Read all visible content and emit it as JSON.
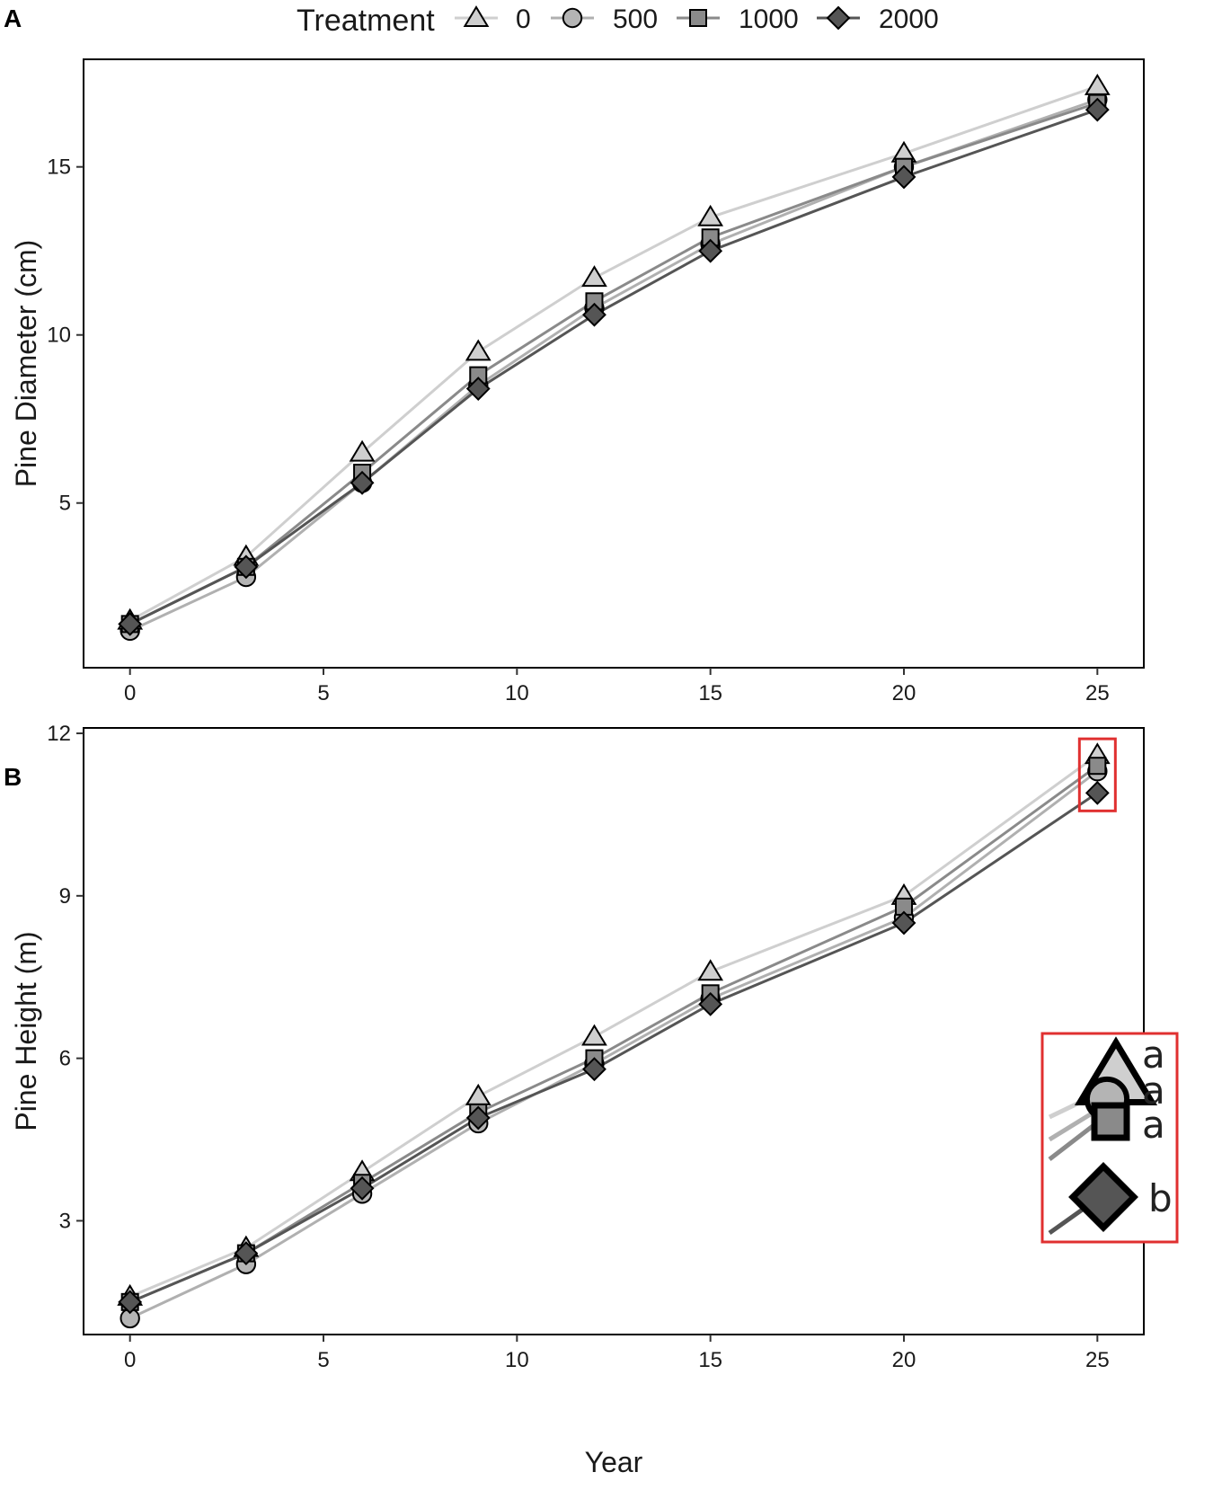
{
  "legend": {
    "title": "Treatment",
    "entries": [
      {
        "label": "0",
        "shape": "triangle",
        "fill": "#cfcfcf",
        "line": "#cfcfcf"
      },
      {
        "label": "500",
        "shape": "circle",
        "fill": "#b4b4b4",
        "line": "#b0b0b0"
      },
      {
        "label": "1000",
        "shape": "square",
        "fill": "#8a8a8a",
        "line": "#8a8a8a"
      },
      {
        "label": "2000",
        "shape": "diamond",
        "fill": "#555555",
        "line": "#555555"
      }
    ]
  },
  "chart_data": [
    {
      "panel": "A",
      "type": "line",
      "xlabel": "",
      "ylabel": "Pine Diameter (cm)",
      "xlim": [
        -1.2,
        26.2
      ],
      "ylim": [
        0.1,
        18.2
      ],
      "xticks": [
        0,
        5,
        10,
        15,
        20,
        25
      ],
      "yticks": [
        5,
        10,
        15
      ],
      "grid": false,
      "x": [
        0,
        3,
        6,
        9,
        12,
        15,
        20,
        25
      ],
      "series": [
        {
          "name": "0",
          "values": [
            1.5,
            3.4,
            6.5,
            9.5,
            11.7,
            13.5,
            15.4,
            17.4
          ]
        },
        {
          "name": "500",
          "values": [
            1.2,
            2.8,
            5.6,
            8.5,
            10.8,
            12.7,
            15.0,
            17.0
          ]
        },
        {
          "name": "1000",
          "values": [
            1.4,
            3.1,
            5.9,
            8.8,
            11.0,
            12.9,
            15.0,
            16.9
          ]
        },
        {
          "name": "2000",
          "values": [
            1.4,
            3.1,
            5.6,
            8.4,
            10.6,
            12.5,
            14.7,
            16.7
          ]
        }
      ]
    },
    {
      "panel": "B",
      "type": "line",
      "xlabel": "Year",
      "ylabel": "Pine Height (m)",
      "xlim": [
        -1.2,
        26.2
      ],
      "ylim": [
        0.9,
        12.1
      ],
      "xticks": [
        0,
        5,
        10,
        15,
        20,
        25
      ],
      "yticks": [
        3,
        6,
        9,
        12
      ],
      "grid": false,
      "x": [
        0,
        3,
        6,
        9,
        12,
        15,
        20,
        25
      ],
      "series": [
        {
          "name": "0",
          "values": [
            1.6,
            2.5,
            3.9,
            5.3,
            6.4,
            7.6,
            9.0,
            11.6
          ]
        },
        {
          "name": "500",
          "values": [
            1.2,
            2.2,
            3.5,
            4.8,
            5.9,
            7.1,
            8.6,
            11.3
          ]
        },
        {
          "name": "1000",
          "values": [
            1.5,
            2.4,
            3.7,
            5.0,
            6.0,
            7.2,
            8.8,
            11.4
          ]
        },
        {
          "name": "2000",
          "values": [
            1.5,
            2.4,
            3.6,
            4.9,
            5.8,
            7.0,
            8.5,
            10.9
          ]
        }
      ],
      "annotations": {
        "highlight_color": "#e03030",
        "significance_letters": [
          {
            "series": "0",
            "letter": "a"
          },
          {
            "series": "500",
            "letter": "a"
          },
          {
            "series": "1000",
            "letter": "a"
          },
          {
            "series": "2000",
            "letter": "b"
          }
        ]
      }
    }
  ]
}
